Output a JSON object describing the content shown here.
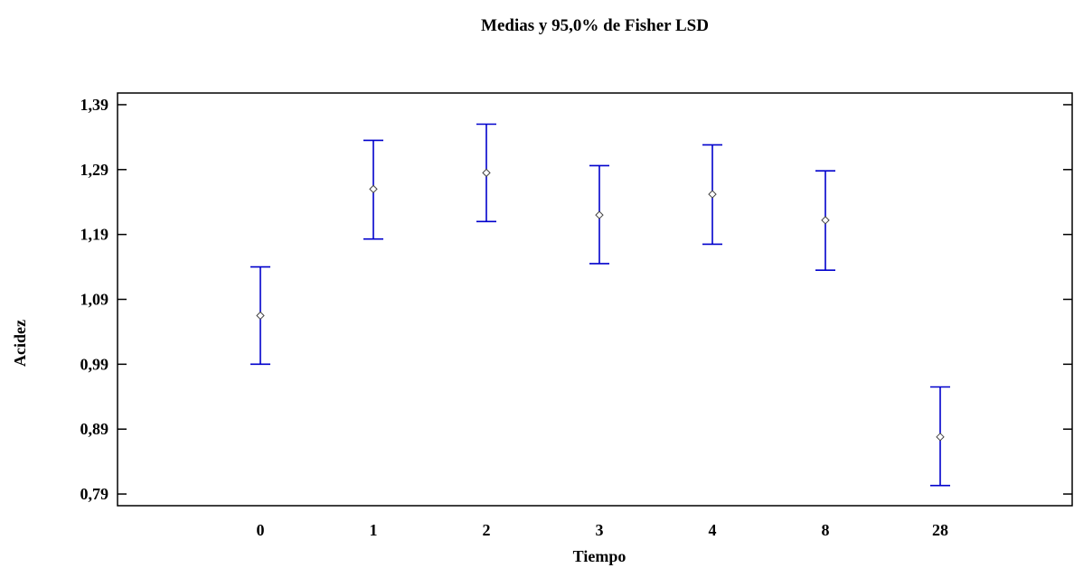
{
  "chart_data": {
    "type": "errorbar",
    "title": "Medias y 95,0% de Fisher LSD",
    "xlabel": "Tiempo",
    "ylabel": "Acidez",
    "categories": [
      "0",
      "1",
      "2",
      "3",
      "4",
      "8",
      "28"
    ],
    "means": [
      1.065,
      1.26,
      1.285,
      1.22,
      1.252,
      1.212,
      0.878
    ],
    "lower": [
      0.99,
      1.183,
      1.21,
      1.145,
      1.175,
      1.135,
      0.803
    ],
    "upper": [
      1.14,
      1.335,
      1.36,
      1.296,
      1.328,
      1.288,
      0.955
    ],
    "yticks": [
      0.79,
      0.89,
      0.99,
      1.09,
      1.19,
      1.29,
      1.39
    ],
    "ytick_labels": [
      "0,79",
      "0,89",
      "0,99",
      "1,09",
      "1,19",
      "1,29",
      "1,39"
    ],
    "ylim": [
      0.772,
      1.408
    ],
    "marker": "diamond",
    "colors": {
      "errorbar": "#0000cc",
      "marker": "#444444",
      "axis": "#000000"
    },
    "grid": false,
    "legend": "none"
  }
}
